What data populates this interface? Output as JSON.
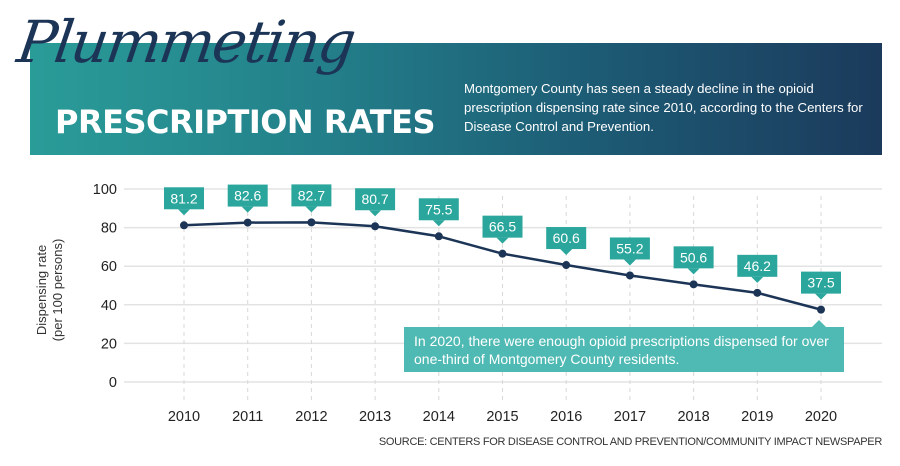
{
  "header": {
    "script_title": "Plummeting",
    "main_title": "PRESCRIPTION RATES",
    "description": "Montgomery County has seen a steady decline in the opioid prescription dispensing rate since 2010, according to the Centers for Disease Control and Prevention."
  },
  "colors": {
    "line": "#1c3557",
    "label_bg": "#2ba69c",
    "callout_bg": "#4fb9b3",
    "grid": "#e3e3e3"
  },
  "callout": "In 2020, there were enough opioid prescriptions dispensed for over one-third of Montgomery County residents.",
  "source": "SOURCE: CENTERS FOR DISEASE CONTROL AND PREVENTION/COMMUNITY IMPACT NEWSPAPER",
  "chart_data": {
    "type": "line",
    "title": "Plummeting Prescription Rates",
    "xlabel": "",
    "ylabel": "Dispensing rate (per 100 persons)",
    "ylabel_lines": [
      "Dispensing rate",
      "(per 100 persons)"
    ],
    "x": [
      "2010",
      "2011",
      "2012",
      "2013",
      "2014",
      "2015",
      "2016",
      "2017",
      "2018",
      "2019",
      "2020"
    ],
    "series": [
      {
        "name": "Dispensing rate",
        "values": [
          81.2,
          82.6,
          82.7,
          80.7,
          75.5,
          66.5,
          60.6,
          55.2,
          50.6,
          46.2,
          37.5
        ]
      }
    ],
    "data_labels": [
      "81.2",
      "82.6",
      "82.7",
      "80.7",
      "75.5",
      "66.5",
      "60.6",
      "55.2",
      "50.6",
      "46.2",
      "37.5"
    ],
    "ylim": [
      0,
      100
    ],
    "yticks": [
      0,
      20,
      40,
      60,
      80,
      100
    ],
    "grid": true,
    "legend": "none"
  }
}
